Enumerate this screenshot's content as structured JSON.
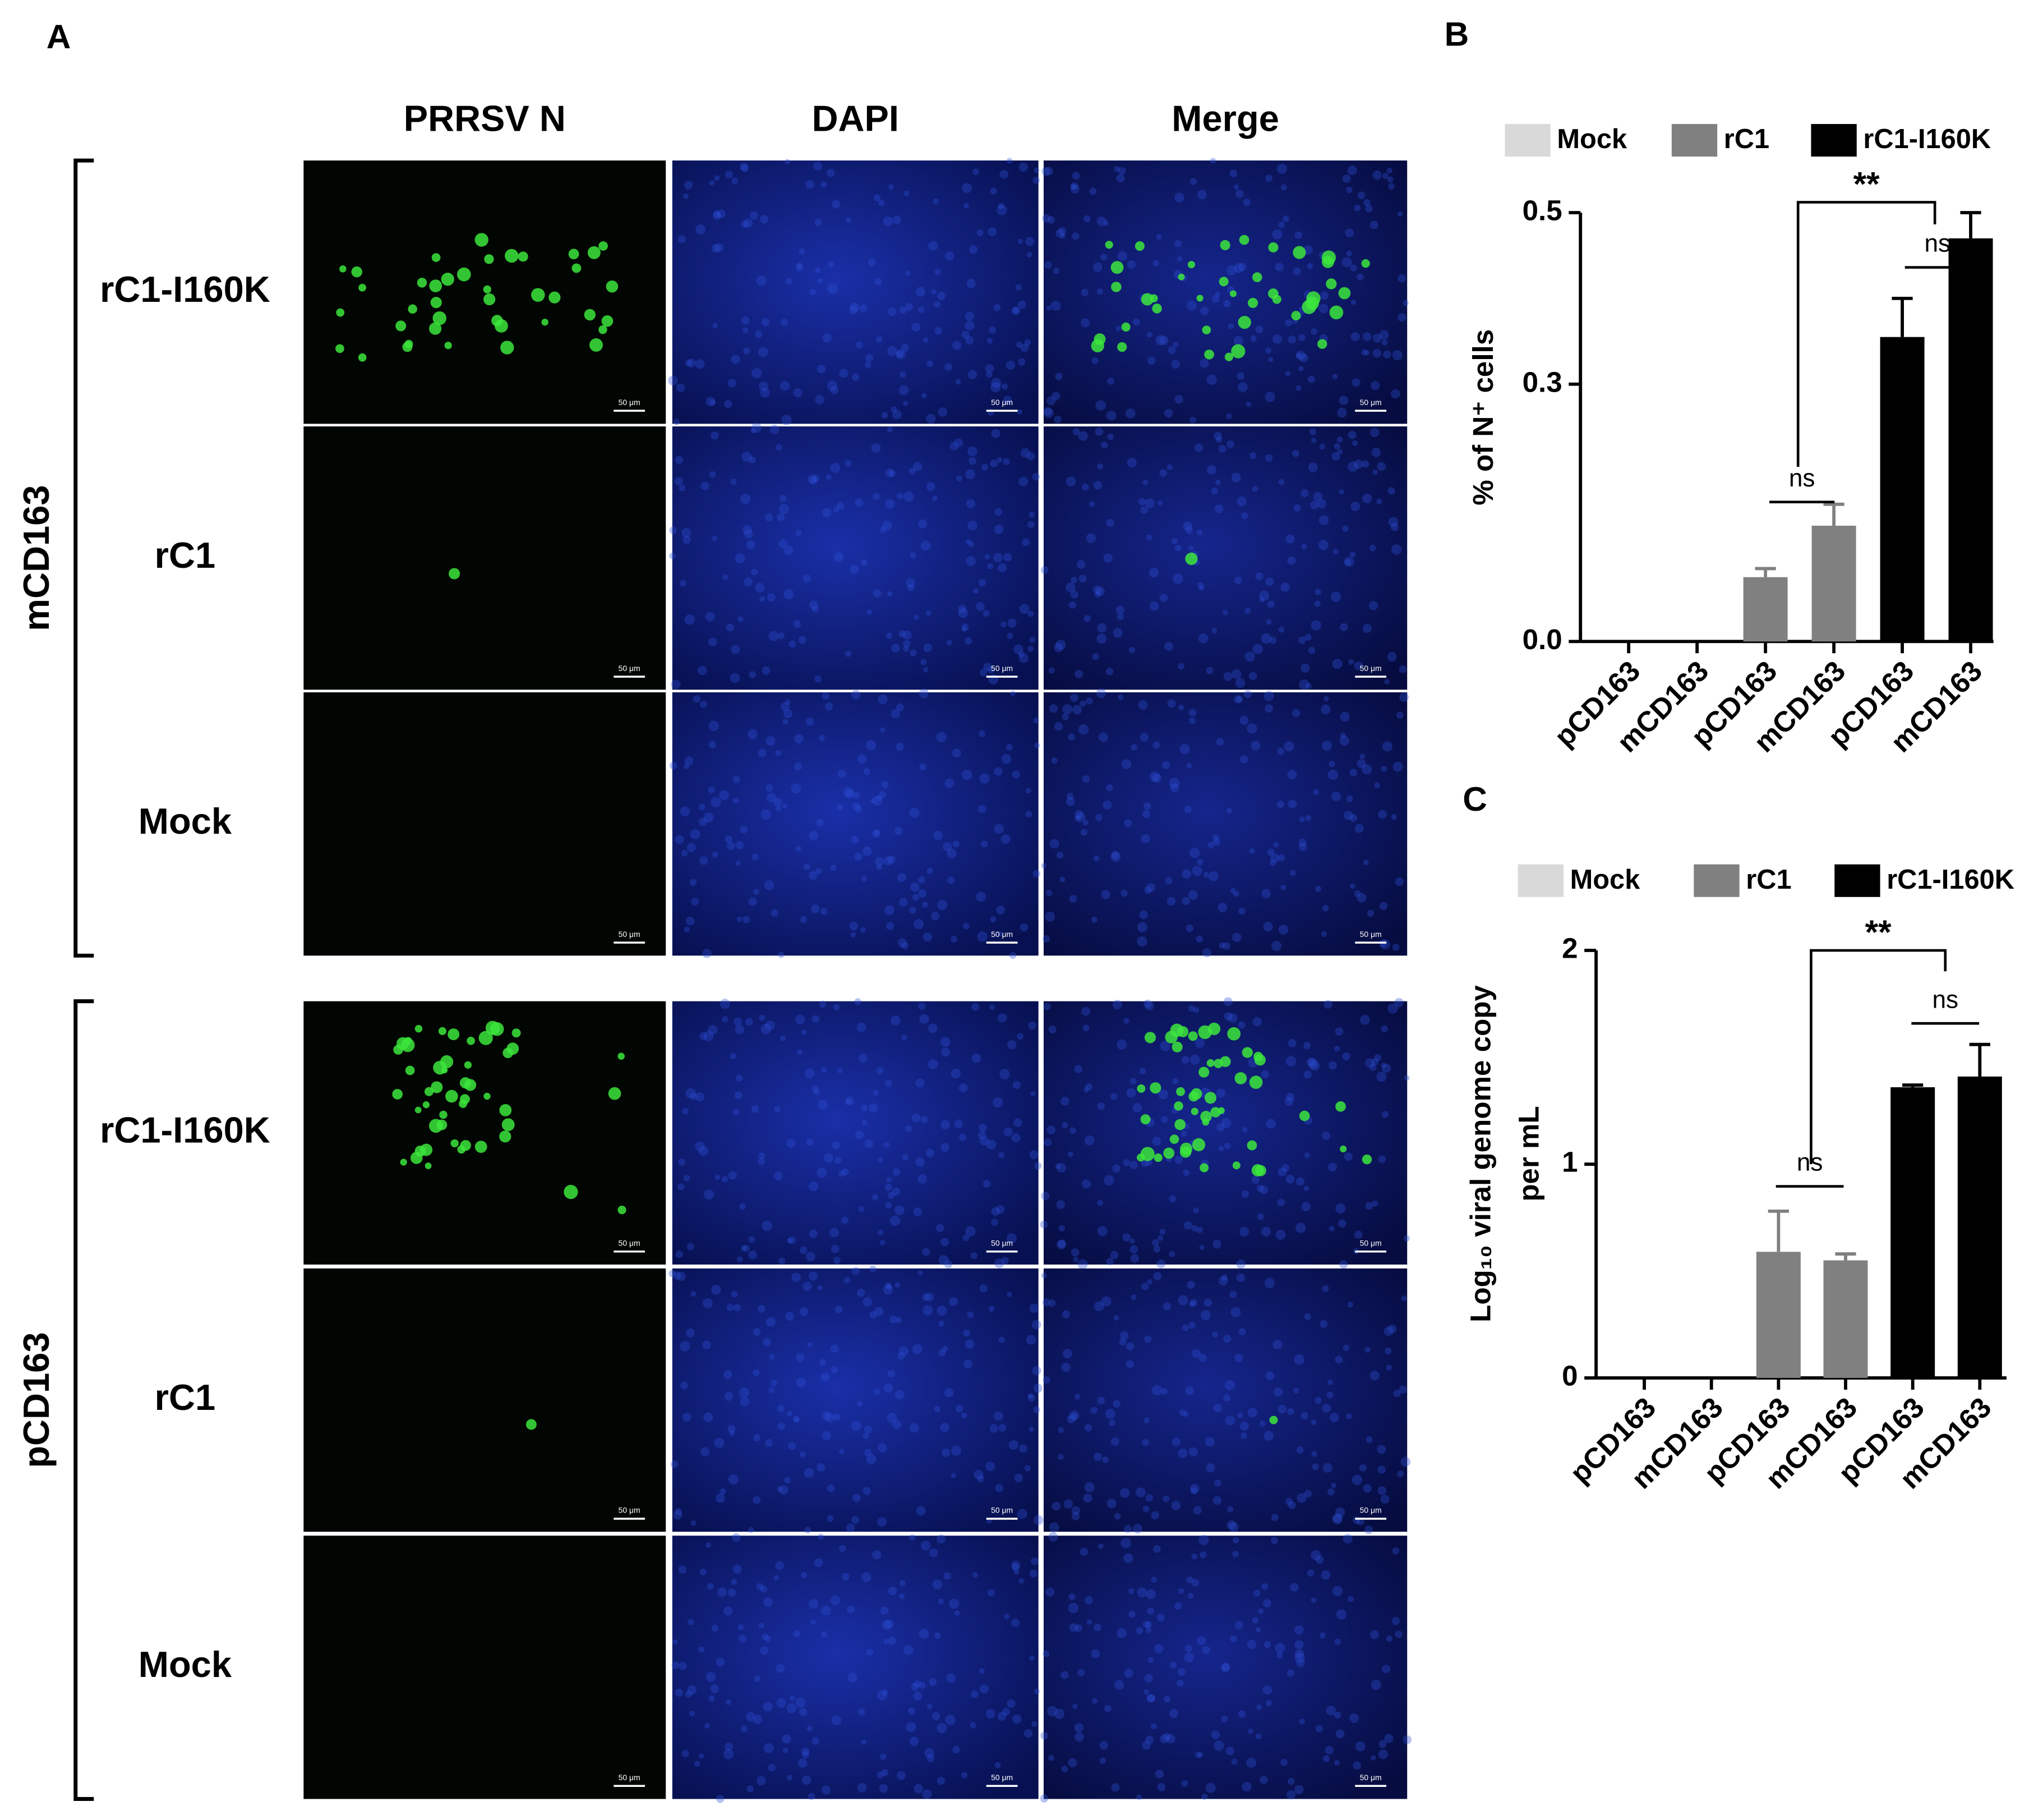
{
  "panel_a": {
    "panel_label": "A",
    "columns": [
      "PRRSV N",
      "DAPI",
      "Merge"
    ],
    "groups": [
      {
        "name": "mCD163",
        "rows": [
          "rC1-I160K",
          "rC1",
          "Mock"
        ]
      },
      {
        "name": "pCD163",
        "rows": [
          "rC1-I160K",
          "rC1",
          "Mock"
        ]
      }
    ],
    "scale_bar": "50 μm"
  },
  "chart_data": [
    {
      "type": "bar",
      "panel_label": "B",
      "ylabel": [
        "% of N⁺ cells"
      ],
      "categories": [
        "pCD163",
        "mCD163",
        "pCD163",
        "mCD163",
        "pCD163",
        "mCD163"
      ],
      "series": [
        {
          "name": "Mock",
          "color": "#d9d9d9",
          "values": [
            0,
            0,
            null,
            null,
            null,
            null
          ],
          "errors": [
            null,
            null,
            null,
            null,
            null,
            null
          ]
        },
        {
          "name": "rC1",
          "color": "#808080",
          "values": [
            null,
            null,
            0.075,
            0.135,
            null,
            null
          ],
          "errors": [
            null,
            null,
            0.01,
            0.025,
            null,
            null
          ]
        },
        {
          "name": "rC1-I160K",
          "color": "#000000",
          "values": [
            null,
            null,
            null,
            null,
            0.355,
            0.47
          ],
          "errors": [
            null,
            null,
            null,
            null,
            0.045,
            0.03
          ]
        }
      ],
      "ylim": [
        0,
        0.5
      ],
      "yticks": [
        {
          "value": 0,
          "label": "0.0"
        },
        0.3,
        0.5
      ],
      "annotations": [
        "ns",
        "ns",
        "**"
      ]
    },
    {
      "type": "bar",
      "panel_label": "C",
      "ylabel": [
        "Log₁₀ viral genome copy",
        "per mL"
      ],
      "categories": [
        "pCD163",
        "mCD163",
        "pCD163",
        "mCD163",
        "pCD163",
        "mCD163"
      ],
      "series": [
        {
          "name": "Mock",
          "color": "#d9d9d9",
          "values": [
            0,
            0,
            null,
            null,
            null,
            null
          ],
          "errors": [
            null,
            null,
            null,
            null,
            null,
            null
          ]
        },
        {
          "name": "rC1",
          "color": "#808080",
          "values": [
            null,
            null,
            0.59,
            0.55,
            null,
            null
          ],
          "errors": [
            null,
            null,
            0.19,
            0.03,
            null,
            null
          ]
        },
        {
          "name": "rC1-I160K",
          "color": "#000000",
          "values": [
            null,
            null,
            null,
            null,
            1.36,
            1.41
          ],
          "errors": [
            null,
            null,
            null,
            null,
            0.01,
            0.15
          ]
        }
      ],
      "ylim": [
        0,
        2
      ],
      "yticks": [
        0,
        1,
        2
      ],
      "annotations": [
        "ns",
        "ns",
        "**"
      ]
    }
  ]
}
